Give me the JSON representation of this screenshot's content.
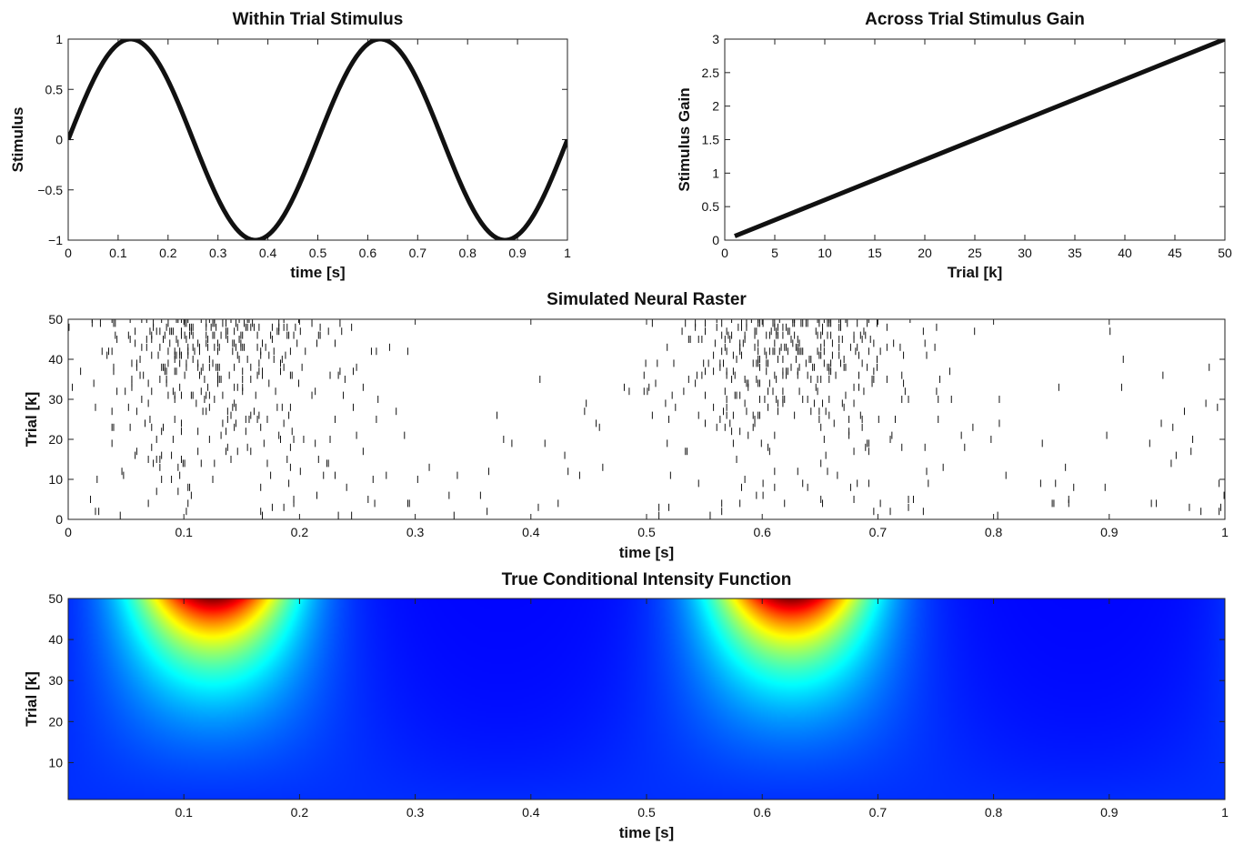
{
  "chart_data": [
    {
      "id": "stimulus",
      "type": "line",
      "title": "Within Trial Stimulus",
      "xlabel": "time [s]",
      "ylabel": "Stimulus",
      "xlim": [
        0,
        1
      ],
      "ylim": [
        -1,
        1
      ],
      "xticks": [
        0,
        0.1,
        0.2,
        0.3,
        0.4,
        0.5,
        0.6,
        0.7,
        0.8,
        0.9,
        1
      ],
      "xtick_labels": [
        "0",
        "0.1",
        "0.2",
        "0.3",
        "0.4",
        "0.5",
        "0.6",
        "0.7",
        "0.8",
        "0.9",
        "1"
      ],
      "yticks": [
        -1,
        -0.5,
        0,
        0.5,
        1
      ],
      "ytick_labels": [
        "−1",
        "−0.5",
        "0",
        "0.5",
        "1"
      ],
      "function": "sin(2*pi*2*t)",
      "frequency_hz": 2,
      "amplitude": 1,
      "line_color": "#111111",
      "grid": false
    },
    {
      "id": "gain",
      "type": "line",
      "title": "Across Trial Stimulus Gain",
      "xlabel": "Trial [k]",
      "ylabel": "Stimulus Gain",
      "xlim": [
        0,
        50
      ],
      "ylim": [
        0,
        3
      ],
      "xticks": [
        0,
        5,
        10,
        15,
        20,
        25,
        30,
        35,
        40,
        45,
        50
      ],
      "xtick_labels": [
        "0",
        "5",
        "10",
        "15",
        "20",
        "25",
        "30",
        "35",
        "40",
        "45",
        "50"
      ],
      "yticks": [
        0,
        0.5,
        1,
        1.5,
        2,
        2.5,
        3
      ],
      "ytick_labels": [
        "0",
        "0.5",
        "1",
        "1.5",
        "2",
        "2.5",
        "3"
      ],
      "x": [
        1,
        50
      ],
      "y": [
        0.06,
        3
      ],
      "line_color": "#111111",
      "grid": false
    },
    {
      "id": "raster",
      "type": "scatter",
      "title": "Simulated Neural Raster",
      "xlabel": "time [s]",
      "ylabel": "Trial [k]",
      "xlim": [
        0,
        1
      ],
      "ylim": [
        0,
        50
      ],
      "xticks": [
        0,
        0.1,
        0.2,
        0.3,
        0.4,
        0.5,
        0.6,
        0.7,
        0.8,
        0.9,
        1
      ],
      "xtick_labels": [
        "0",
        "0.1",
        "0.2",
        "0.3",
        "0.4",
        "0.5",
        "0.6",
        "0.7",
        "0.8",
        "0.9",
        "1"
      ],
      "yticks": [
        0,
        10,
        20,
        30,
        40,
        50
      ],
      "ytick_labels": [
        "0",
        "10",
        "20",
        "30",
        "40",
        "50"
      ],
      "trials": 50,
      "marker": "vertical-tick",
      "mark_color": "#111111",
      "grid": false
    },
    {
      "id": "intensity",
      "type": "heatmap",
      "title": "True Conditional Intensity Function",
      "xlabel": "time [s]",
      "ylabel": "Trial [k]",
      "xlim": [
        0,
        1
      ],
      "ylim": [
        1,
        50
      ],
      "xticks": [
        0.1,
        0.2,
        0.3,
        0.4,
        0.5,
        0.6,
        0.7,
        0.8,
        0.9,
        1
      ],
      "xtick_labels": [
        "0.1",
        "0.2",
        "0.3",
        "0.4",
        "0.5",
        "0.6",
        "0.7",
        "0.8",
        "0.9",
        "1"
      ],
      "yticks": [
        10,
        20,
        30,
        40,
        50
      ],
      "ytick_labels": [
        "10",
        "20",
        "30",
        "40",
        "50"
      ],
      "function": "exp(b0 + gain(k) * sin(2*pi*2*t))",
      "colormap": "jet",
      "grid": false
    }
  ]
}
